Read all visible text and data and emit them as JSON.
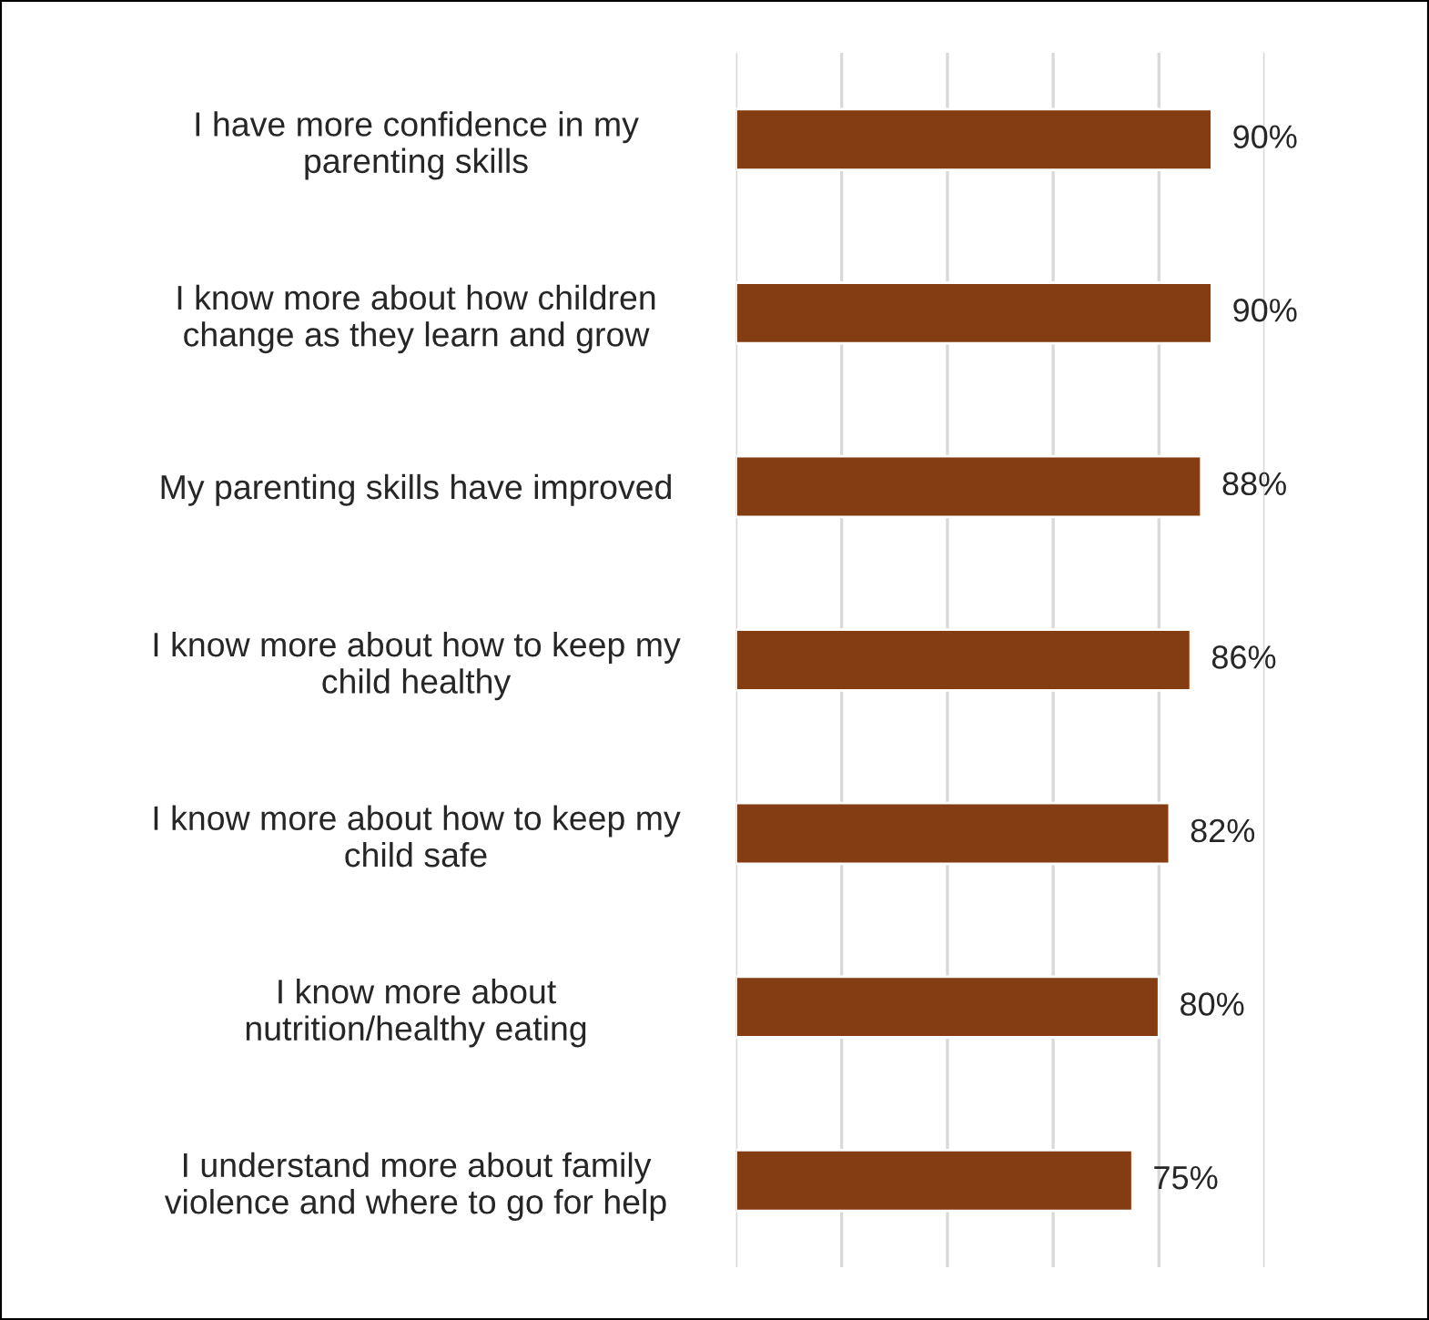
{
  "chart_data": {
    "type": "bar",
    "orientation": "horizontal",
    "categories": [
      "I have more confidence in my\nparenting skills",
      "I know more about how children\nchange as they learn and grow",
      "My parenting skills have improved",
      "I know more about how to keep my\nchild healthy",
      "I know more about how to keep my\nchild safe",
      "I know more about\nnutrition/healthy eating",
      "I understand more about family\nviolence and where to go for help"
    ],
    "values": [
      90,
      90,
      88,
      86,
      82,
      80,
      75
    ],
    "value_labels": [
      "90%",
      "90%",
      "88%",
      "86%",
      "82%",
      "80%",
      "75%"
    ],
    "color": "#843c12",
    "xlim": [
      0,
      100
    ],
    "xticks": [
      {
        "value": 0,
        "label": null
      },
      {
        "value": 20,
        "label": null
      },
      {
        "value": 40,
        "label": null
      },
      {
        "value": 60,
        "label": null
      },
      {
        "value": 80,
        "label": null
      },
      {
        "value": 100,
        "label": null
      }
    ],
    "tick_labels": "y",
    "grid": "x",
    "legend": false
  }
}
